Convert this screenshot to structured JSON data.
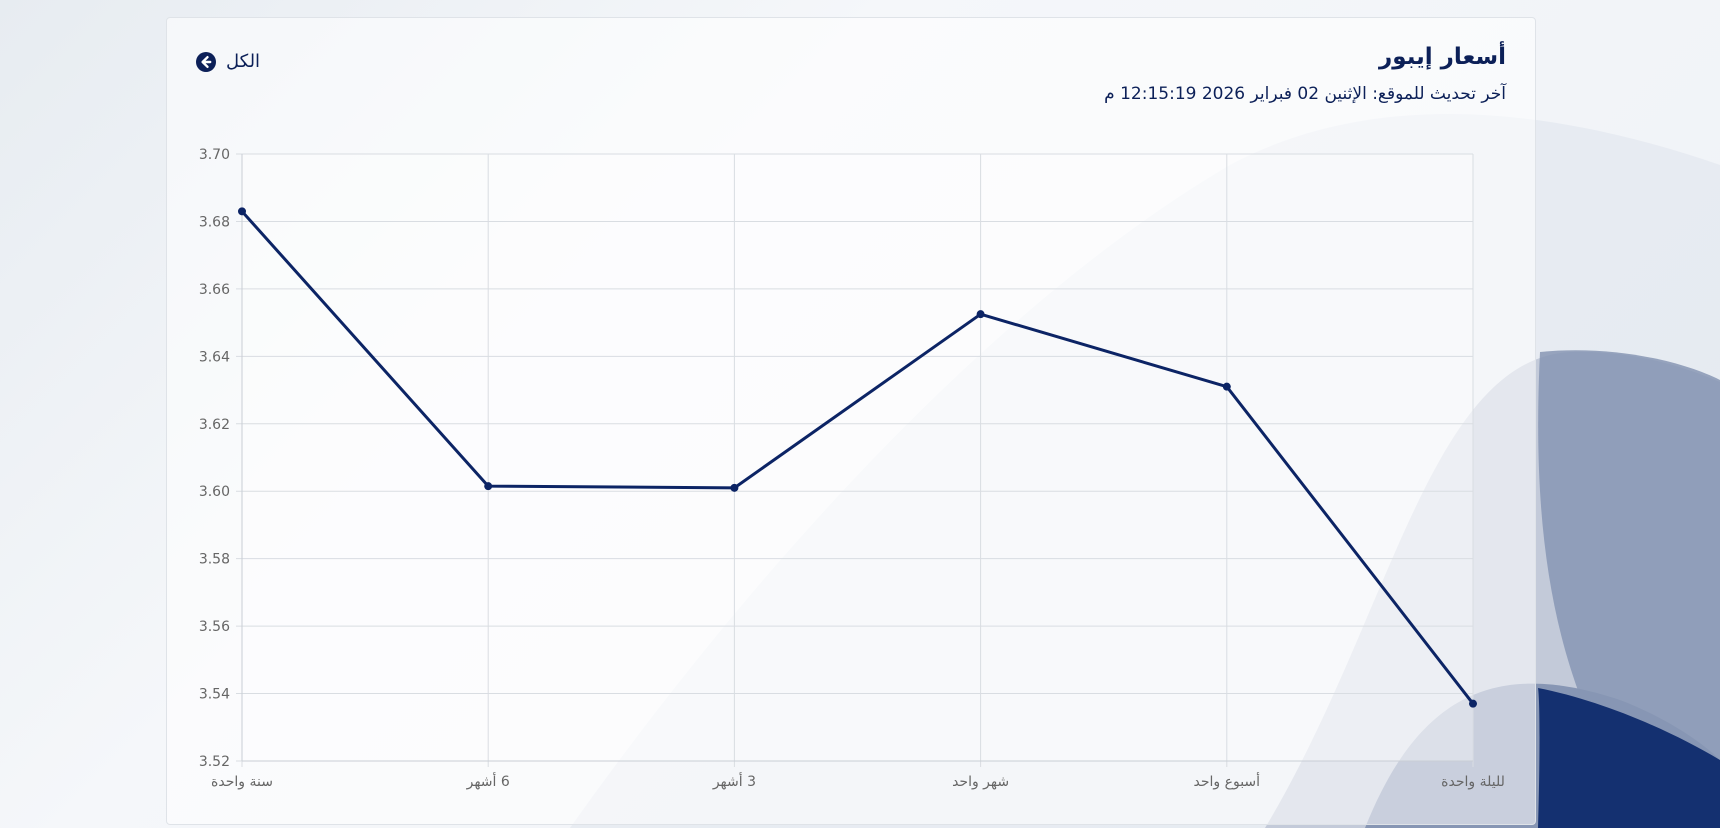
{
  "header": {
    "title": "أسعار إيبور",
    "last_updated": "آخر تحديث للموقع: الإثنين 02 فبراير 2026 12:15:19 م",
    "all_link_label": "الكل",
    "all_link_icon": "circle-arrow-left-icon"
  },
  "colors": {
    "accent": "#0c2058",
    "line": "#0c2465",
    "grid": "#d9dde2",
    "tick_text": "#666666",
    "wave_light": "#c3cad9",
    "wave_mid": "#8796b4",
    "wave_dark": "#143070"
  },
  "chart_data": {
    "type": "line",
    "categories": [
      "سنة واحدة",
      "6 أشهر",
      "3 أشهر",
      "شهر واحد",
      "أسبوع واحد",
      "لليلة واحدة"
    ],
    "series": [
      {
        "values": [
          3.683,
          3.6015,
          3.601,
          3.6525,
          3.631,
          3.537
        ]
      }
    ],
    "ylim": [
      3.52,
      3.7
    ],
    "yticks": [
      3.52,
      3.54,
      3.56,
      3.58,
      3.6,
      3.62,
      3.64,
      3.66,
      3.68,
      3.7
    ],
    "ytick_labels": [
      "3.52",
      "3.54",
      "3.56",
      "3.58",
      "3.60",
      "3.62",
      "3.64",
      "3.66",
      "3.68",
      "3.70"
    ],
    "xlabel": "",
    "ylabel": "",
    "grid": true,
    "legend": "none"
  }
}
